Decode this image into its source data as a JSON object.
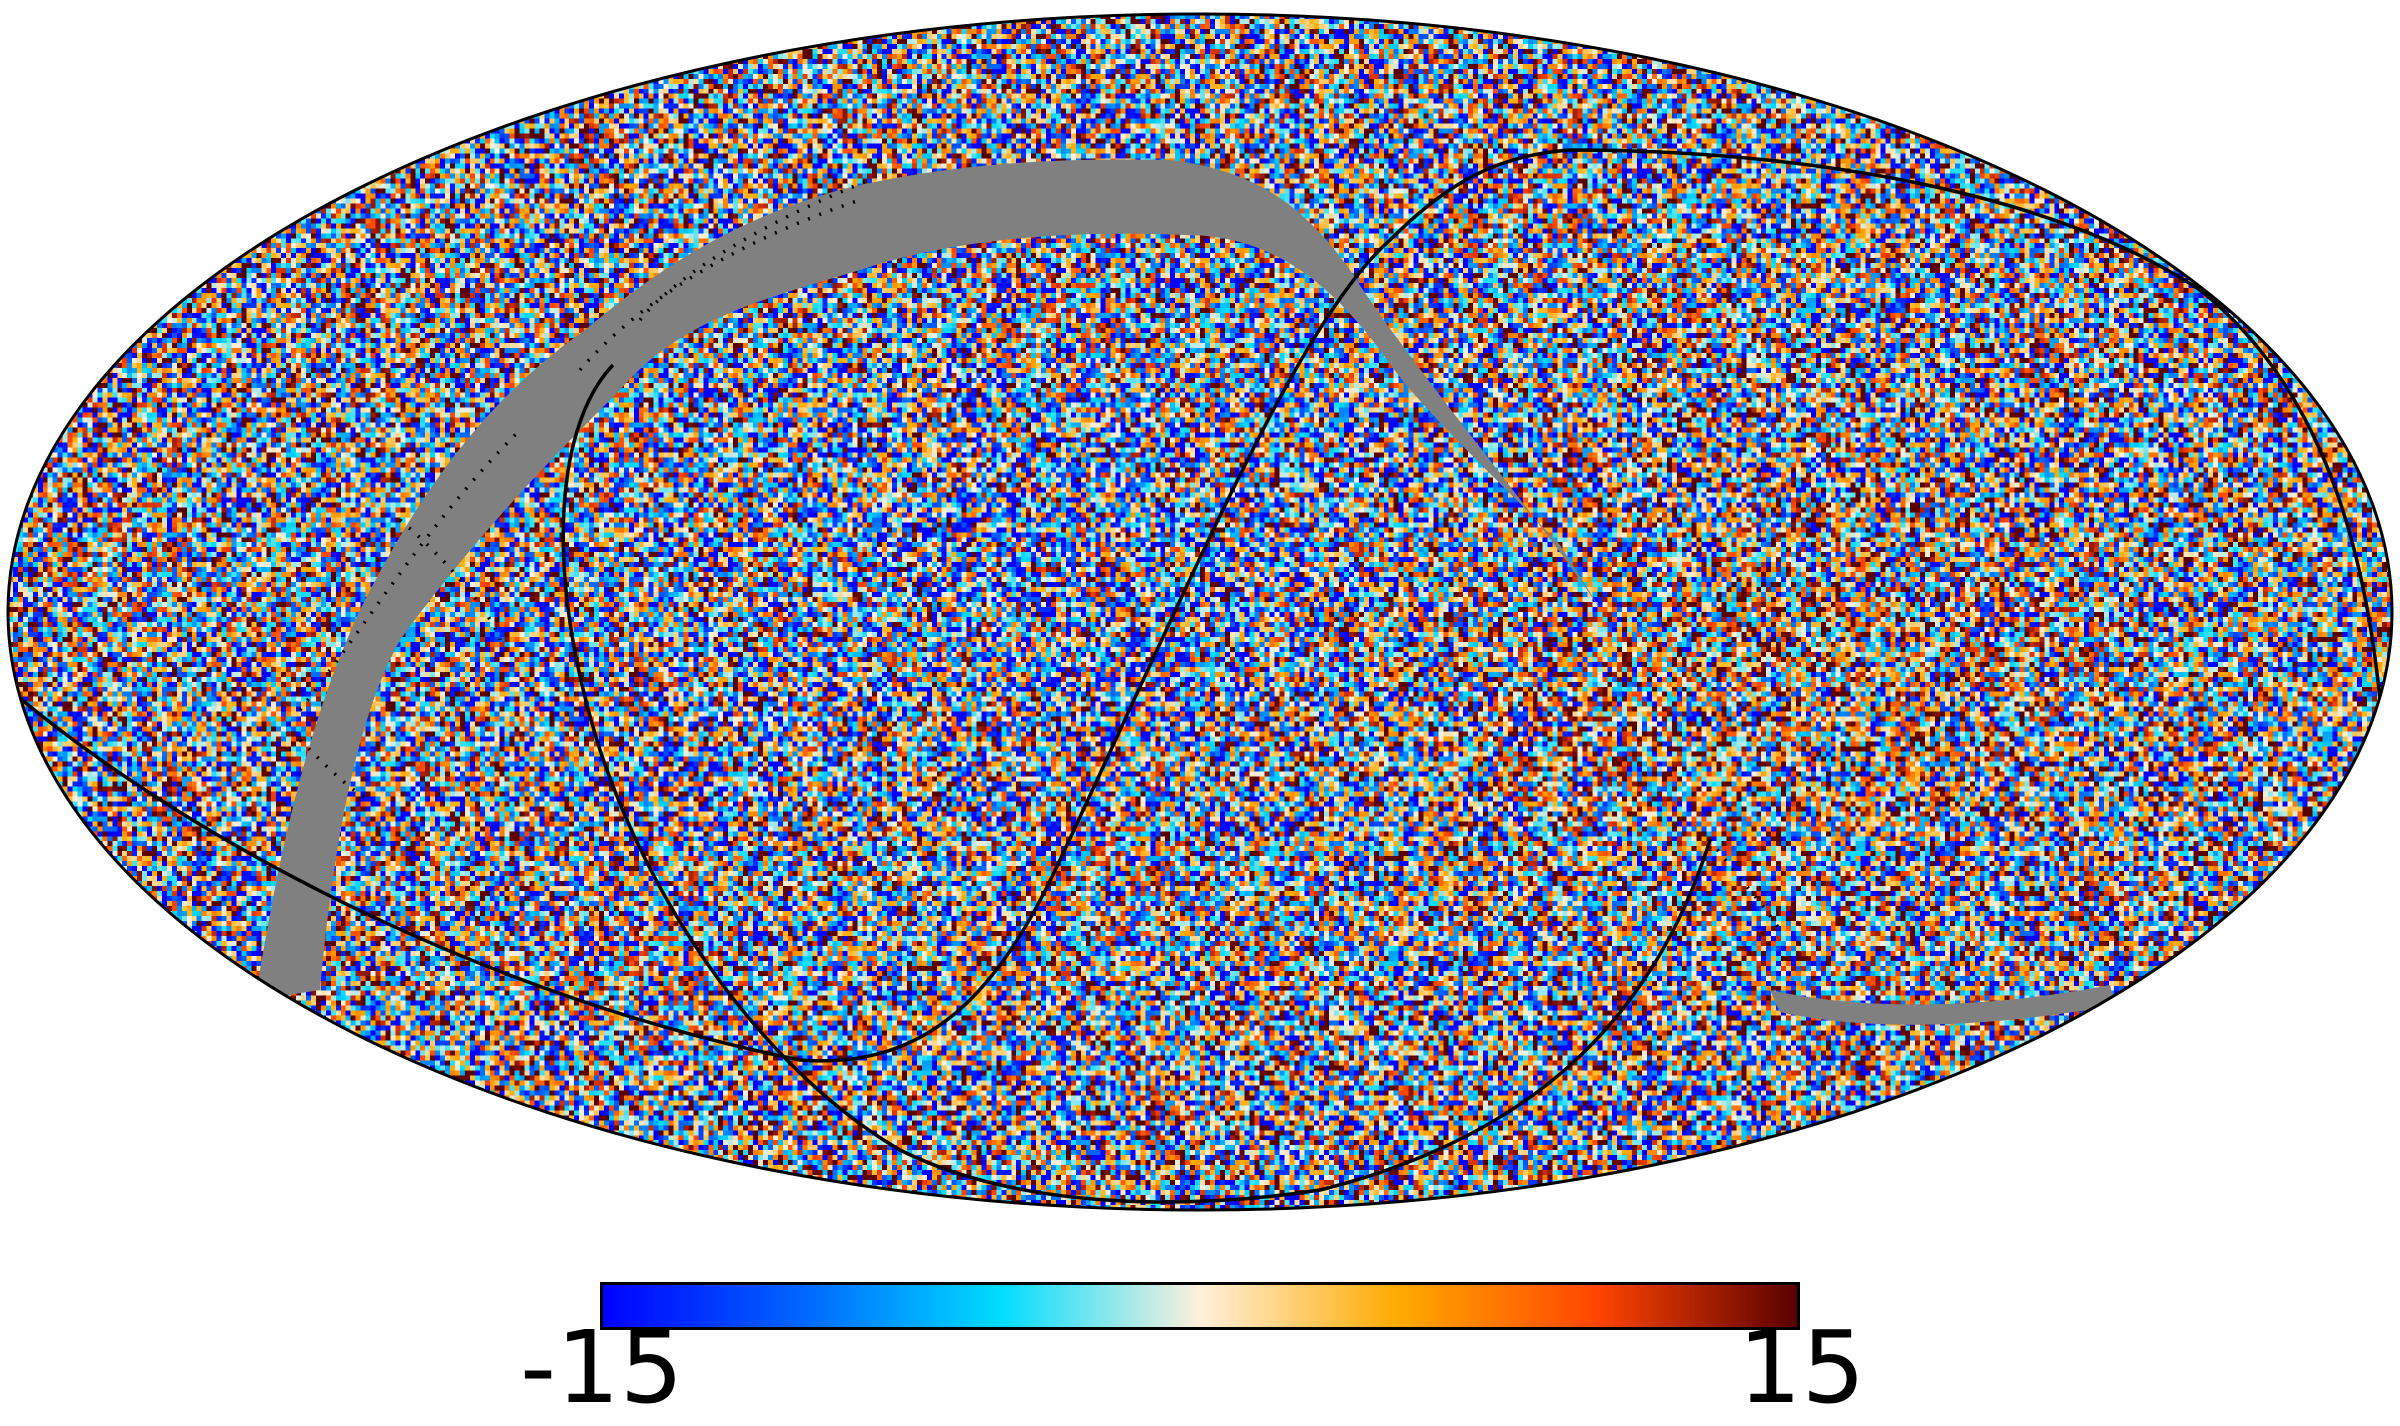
{
  "map": {
    "projection": "mollweide",
    "mask_color": "#808080",
    "outline_color": "#000000"
  },
  "colorbar": {
    "min_label": "-15",
    "max_label": "15",
    "min_value": -15,
    "max_value": 15,
    "colors": [
      "#0000ff",
      "#0066ff",
      "#00ddff",
      "#fff0dc",
      "#ffaa00",
      "#ff4400",
      "#5a0000"
    ]
  }
}
